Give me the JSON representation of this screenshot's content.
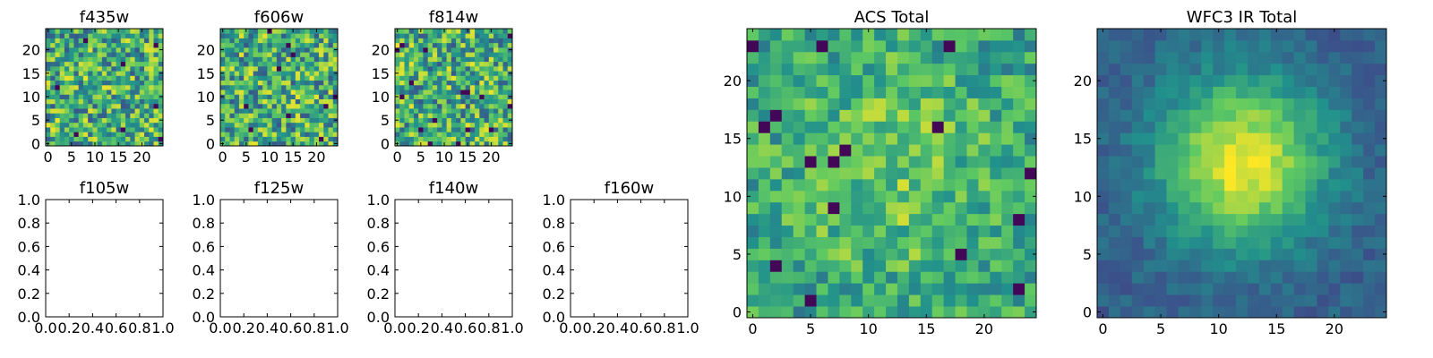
{
  "colors": {
    "axis": "#000000",
    "viridis": [
      "#440154",
      "#3b528b",
      "#21918c",
      "#5ec962",
      "#fde725"
    ]
  },
  "chart_data": [
    {
      "type": "heatmap",
      "title": "f435w",
      "grid_size": [
        25,
        25
      ],
      "xlim": [
        -0.5,
        24.5
      ],
      "ylim": [
        -0.5,
        24.5
      ],
      "xticks": [
        "0",
        "5",
        "10",
        "15",
        "20"
      ],
      "yticks": [
        "0",
        "5",
        "10",
        "15",
        "20"
      ],
      "value_range": [
        0,
        1
      ],
      "pattern": "noise"
    },
    {
      "type": "heatmap",
      "title": "f606w",
      "grid_size": [
        25,
        25
      ],
      "xlim": [
        -0.5,
        24.5
      ],
      "ylim": [
        -0.5,
        24.5
      ],
      "xticks": [
        "0",
        "5",
        "10",
        "15",
        "20"
      ],
      "yticks": [
        "0",
        "5",
        "10",
        "15",
        "20"
      ],
      "value_range": [
        0,
        1
      ],
      "pattern": "noise"
    },
    {
      "type": "heatmap",
      "title": "f814w",
      "grid_size": [
        25,
        25
      ],
      "xlim": [
        -0.5,
        24.5
      ],
      "ylim": [
        -0.5,
        24.5
      ],
      "xticks": [
        "0",
        "5",
        "10",
        "15",
        "20"
      ],
      "yticks": [
        "0",
        "5",
        "10",
        "15",
        "20"
      ],
      "value_range": [
        0,
        1
      ],
      "pattern": "noise"
    },
    {
      "type": "empty",
      "title": "f105w",
      "xlim": [
        0,
        1
      ],
      "ylim": [
        0,
        1
      ],
      "xticks": [
        "0.0",
        "0.2",
        "0.4",
        "0.6",
        "0.8",
        "1.0"
      ],
      "yticks": [
        "0.0",
        "0.2",
        "0.4",
        "0.6",
        "0.8",
        "1.0"
      ]
    },
    {
      "type": "empty",
      "title": "f125w",
      "xlim": [
        0,
        1
      ],
      "ylim": [
        0,
        1
      ],
      "xticks": [
        "0.0",
        "0.2",
        "0.4",
        "0.6",
        "0.8",
        "1.0"
      ],
      "yticks": [
        "0.0",
        "0.2",
        "0.4",
        "0.6",
        "0.8",
        "1.0"
      ]
    },
    {
      "type": "empty",
      "title": "f140w",
      "xlim": [
        0,
        1
      ],
      "ylim": [
        0,
        1
      ],
      "xticks": [
        "0.0",
        "0.2",
        "0.4",
        "0.6",
        "0.8",
        "1.0"
      ],
      "yticks": [
        "0.0",
        "0.2",
        "0.4",
        "0.6",
        "0.8",
        "1.0"
      ]
    },
    {
      "type": "empty",
      "title": "f160w",
      "xlim": [
        0,
        1
      ],
      "ylim": [
        0,
        1
      ],
      "xticks": [
        "0.0",
        "0.2",
        "0.4",
        "0.6",
        "0.8",
        "1.0"
      ],
      "yticks": [
        "0.0",
        "0.2",
        "0.4",
        "0.6",
        "0.8",
        "1.0"
      ]
    },
    {
      "type": "heatmap",
      "title": "ACS Total",
      "grid_size": [
        25,
        25
      ],
      "xlim": [
        -0.5,
        24.5
      ],
      "ylim": [
        -0.5,
        24.5
      ],
      "xticks": [
        "0",
        "5",
        "10",
        "15",
        "20"
      ],
      "yticks": [
        "0",
        "5",
        "10",
        "15",
        "20"
      ],
      "value_range": [
        0,
        1
      ],
      "pattern": "noise with faint central peak",
      "peak_center": [
        12,
        12
      ]
    },
    {
      "type": "heatmap",
      "title": "WFC3 IR Total",
      "grid_size": [
        25,
        25
      ],
      "xlim": [
        -0.5,
        24.5
      ],
      "ylim": [
        -0.5,
        24.5
      ],
      "xticks": [
        "0",
        "5",
        "10",
        "15",
        "20"
      ],
      "yticks": [
        "0",
        "5",
        "10",
        "15",
        "20"
      ],
      "value_range": [
        0,
        1
      ],
      "pattern": "smooth central peak",
      "peak_center": [
        12,
        13
      ]
    }
  ]
}
